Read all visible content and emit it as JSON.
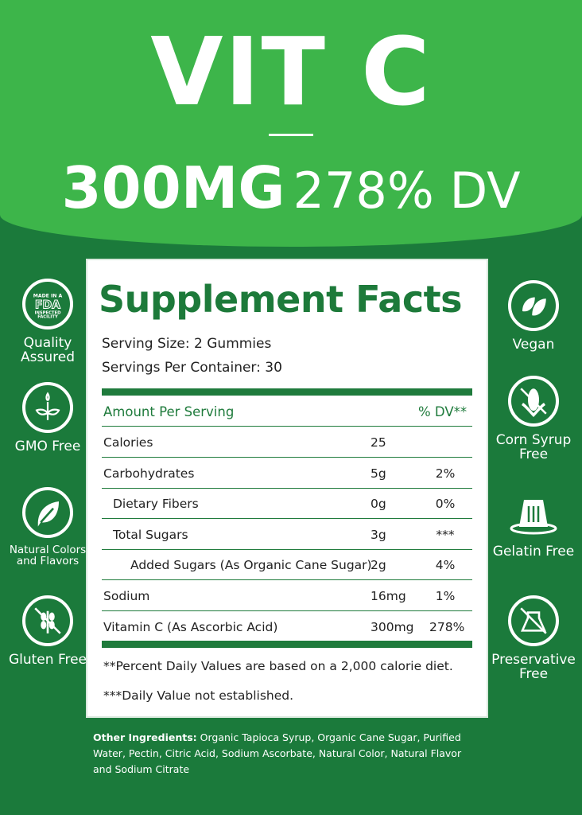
{
  "header": {
    "title": "VIT C",
    "dose": "300MG",
    "dv": "278% DV"
  },
  "facts": {
    "title": "Supplement Facts",
    "serving_size": "Serving Size: 2 Gummies",
    "servings_per_container": "Servings Per Container: 30",
    "columns": {
      "amount": "Amount Per Serving",
      "dv": "% DV**"
    },
    "rows": [
      {
        "name": "Calories",
        "amount": "25",
        "dv": ""
      },
      {
        "name": "Carbohydrates",
        "amount": "5g",
        "dv": "2%"
      },
      {
        "name": "Dietary Fibers",
        "amount": "0g",
        "dv": "0%"
      },
      {
        "name": "Total Sugars",
        "amount": "3g",
        "dv": "***"
      },
      {
        "name": "Added Sugars (As Organic Cane Sugar)",
        "amount": "2g",
        "dv": "4%"
      },
      {
        "name": "Sodium",
        "amount": "16mg",
        "dv": "1%"
      },
      {
        "name": "Vitamin C (As Ascorbic Acid)",
        "amount": "300mg",
        "dv": "278%"
      }
    ],
    "note1": "**Percent Daily Values are based on a 2,000 calorie diet.",
    "note2": "***Daily Value not established."
  },
  "badges_left": [
    {
      "icon": "fda-seal-icon",
      "seal_text": "MADE IN A FDA INSPECTED FACILITY",
      "label": "Quality Assured"
    },
    {
      "icon": "sprout-icon",
      "label": "GMO Free"
    },
    {
      "icon": "leaf-icon",
      "label": "Natural Colors and Flavors"
    },
    {
      "icon": "no-wheat-icon",
      "label": "Gluten Free"
    }
  ],
  "badges_right": [
    {
      "icon": "vegan-leaves-icon",
      "label": "Vegan"
    },
    {
      "icon": "no-corn-icon",
      "label": "Corn Syrup Free"
    },
    {
      "icon": "jelly-icon",
      "label": "Gelatin Free"
    },
    {
      "icon": "no-flask-icon",
      "label": "Preservative Free"
    }
  ],
  "ingredients": {
    "label": "Other Ingredients:",
    "text": " Organic Tapioca Syrup, Organic Cane Sugar, Purified Water, Pectin, Citric Acid, Sodium Ascorbate, Natural Color, Natural Flavor and Sodium Citrate"
  },
  "colors": {
    "light_green": "#3db54a",
    "dark_green": "#1b7a3b"
  }
}
